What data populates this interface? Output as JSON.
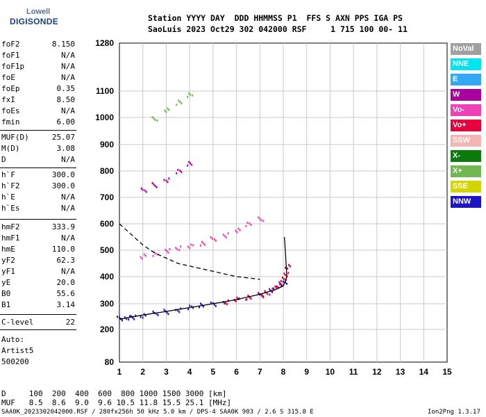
{
  "logo": {
    "line1": "Lowell",
    "line2": "DIGISONDE"
  },
  "header": {
    "line1": "Station YYYY DAY  DDD HHMMSS P1  FFS S AXN PPS IGA PS",
    "line2": "SaoLuis 2023 Oct29 302 042000 RSF     1 715 100 00- 11"
  },
  "params": [
    {
      "name": "foF2",
      "value": "8.150"
    },
    {
      "name": "foF1",
      "value": "N/A"
    },
    {
      "name": "foF1p",
      "value": "N/A"
    },
    {
      "name": "foE",
      "value": "N/A"
    },
    {
      "name": "foEp",
      "value": "0.35"
    },
    {
      "name": "fxI",
      "value": "8.50"
    },
    {
      "name": "foEs",
      "value": "N/A"
    },
    {
      "name": "fmin",
      "value": "6.00"
    },
    {
      "name": "MUF(D)",
      "value": "25.07"
    },
    {
      "name": "M(D)",
      "value": "3.08"
    },
    {
      "name": "D",
      "value": "N/A"
    },
    {
      "name": "h`F",
      "value": "300.0"
    },
    {
      "name": "h`F2",
      "value": "300.0"
    },
    {
      "name": "h`E",
      "value": "N/A"
    },
    {
      "name": "h`Es",
      "value": "N/A"
    },
    {
      "name": "hmF2",
      "value": "333.9"
    },
    {
      "name": "hmF1",
      "value": "N/A"
    },
    {
      "name": "hmE",
      "value": "110.0"
    },
    {
      "name": "yF2",
      "value": "62.3"
    },
    {
      "name": "yF1",
      "value": "N/A"
    },
    {
      "name": "yE",
      "value": "20.0"
    },
    {
      "name": "B0",
      "value": "55.6"
    },
    {
      "name": "B1",
      "value": "3.14"
    },
    {
      "name": "C-level",
      "value": "22"
    }
  ],
  "autoscale": {
    "line1": "Auto:",
    "line2": "Artist5",
    "line3": "500200"
  },
  "legend": [
    {
      "label": "NoVal",
      "color": "#a0a0a0"
    },
    {
      "label": "NNE",
      "color": "#00e5f0"
    },
    {
      "label": "E",
      "color": "#33a8f5"
    },
    {
      "label": "W",
      "color": "#a8009e"
    },
    {
      "label": "Vo-",
      "color": "#f040b8"
    },
    {
      "label": "Vo+",
      "color": "#e8003c"
    },
    {
      "label": "SSW",
      "color": "#f5b4b4"
    },
    {
      "label": "X-",
      "color": "#0a7a0a"
    },
    {
      "label": "X+",
      "color": "#70b850"
    },
    {
      "label": "SSE",
      "color": "#d4d400"
    },
    {
      "label": "NNW",
      "color": "#1c14c8"
    }
  ],
  "muf_table": {
    "line1": "D     100  200  400  600  800 1000 1500 3000 [km]",
    "line2": "MUF   8.5  8.6  9.0  9.6 10.5 11.8 15.5 25.1 [MHz]"
  },
  "footer": {
    "left": "SAA0K_2023302042000.RSF / 280fx256h 50 kHz 5.0 km / DPS-4 SAA0K 903 / 2.6 S 315.8 E",
    "right": "Ion2Png 1.3.17"
  },
  "chart_data": {
    "type": "scatter",
    "xlim": [
      1,
      15
    ],
    "ylim": [
      80,
      1280
    ],
    "xticks": [
      1,
      2,
      3,
      4,
      5,
      6,
      7,
      8,
      9,
      10,
      11,
      12,
      13,
      14,
      15
    ],
    "yticks": [
      80,
      200,
      300,
      400,
      500,
      600,
      700,
      800,
      900,
      1000,
      1100,
      1280
    ],
    "y_scale": "nonlinear (quasi-log)",
    "grid": true,
    "series": [
      {
        "color": "#1c14c8",
        "x": [
          1.0,
          1.3,
          1.6,
          2.0,
          2.5,
          3.0,
          3.5,
          4.0,
          4.5,
          5.0,
          5.5,
          6.0,
          6.5,
          7.0,
          7.5,
          7.8,
          8.0
        ],
        "y": [
          245,
          248,
          252,
          258,
          265,
          272,
          280,
          288,
          296,
          303,
          310,
          318,
          326,
          338,
          352,
          368,
          380
        ]
      },
      {
        "color": "#e8003c",
        "x": [
          5.5,
          6.0,
          6.5,
          7.0,
          7.3,
          7.6,
          7.8,
          8.0,
          8.1,
          8.15
        ],
        "y": [
          310,
          318,
          325,
          335,
          345,
          360,
          375,
          395,
          410,
          440
        ]
      },
      {
        "color": "#f040b8",
        "x": [
          2.0,
          2.5,
          3.0,
          3.5,
          4.0,
          4.5,
          5.0,
          5.5,
          6.0,
          6.5,
          7.0
        ],
        "y": [
          480,
          490,
          500,
          510,
          520,
          530,
          545,
          560,
          580,
          600,
          620
        ]
      },
      {
        "color": "#a8009e",
        "x": [
          2.0,
          2.5,
          3.0,
          3.5,
          4.0
        ],
        "y": [
          730,
          750,
          770,
          800,
          830
        ]
      },
      {
        "color": "#70b850",
        "x": [
          2.5,
          3.0,
          3.5,
          4.0
        ],
        "y": [
          1000,
          1030,
          1060,
          1090
        ]
      }
    ],
    "profile_solid": {
      "x": [
        1.0,
        2.0,
        3.0,
        4.0,
        5.0,
        6.0,
        7.0,
        7.6,
        8.0,
        8.15,
        8.1,
        8.05
      ],
      "y": [
        240,
        256,
        270,
        285,
        300,
        315,
        335,
        350,
        365,
        400,
        480,
        550
      ]
    },
    "profile_dashed": {
      "x": [
        1.0,
        1.5,
        2.0,
        2.5,
        3.0,
        3.5,
        4.0,
        4.5,
        5.0,
        5.5,
        6.0,
        6.5,
        7.0
      ],
      "y": [
        600,
        560,
        520,
        490,
        470,
        450,
        440,
        430,
        420,
        410,
        400,
        395,
        390
      ]
    }
  }
}
